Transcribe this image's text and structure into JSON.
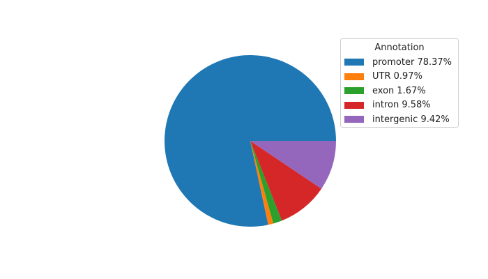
{
  "chart_data": {
    "type": "pie",
    "title": "",
    "start_angle": 0,
    "direction": "counterclockwise",
    "legend": {
      "title": "Annotation",
      "placement": "upper-right"
    },
    "slices": [
      {
        "label": "promoter 78.37%",
        "name": "promoter",
        "value": 78.37,
        "color": "#1f77b4"
      },
      {
        "label": "UTR 0.97%",
        "name": "UTR",
        "value": 0.97,
        "color": "#ff7f0e"
      },
      {
        "label": "exon 1.67%",
        "name": "exon",
        "value": 1.67,
        "color": "#2ca02c"
      },
      {
        "label": "intron 9.58%",
        "name": "intron",
        "value": 9.58,
        "color": "#d62728"
      },
      {
        "label": "intergenic 9.42%",
        "name": "intergenic",
        "value": 9.42,
        "color": "#9467bd"
      }
    ]
  }
}
